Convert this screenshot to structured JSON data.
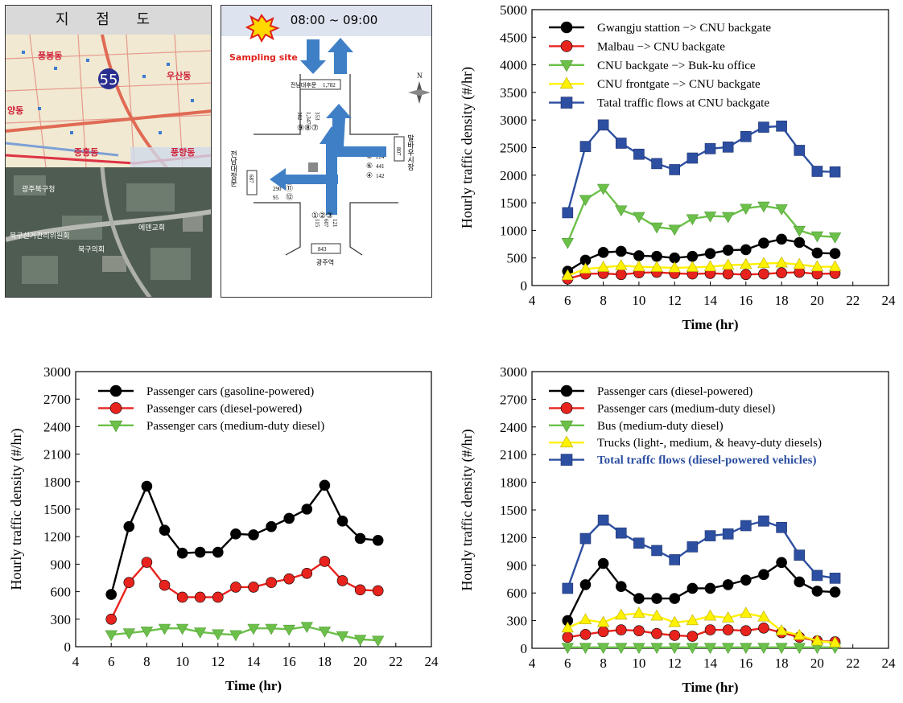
{
  "map": {
    "title": "지 점 도",
    "route_number": "55",
    "district_labels": [
      "풍봉동",
      "우산동",
      "양동",
      "중흥동",
      "풍향동"
    ],
    "satellite_labels": [
      "광주북구청",
      "북구선거관리위원회",
      "에덴교회",
      "북구의회"
    ]
  },
  "schematic": {
    "time_range": "08:00 ~ 09:00",
    "sampling_label": "Sampling site",
    "north_label": "N",
    "top_road": "전남대후문",
    "top_count": "1,782",
    "top_lane_counts": [
      "382",
      "1,347",
      "353"
    ],
    "top_lane_markers": "⑨⑧⑦",
    "right_road": "말바우시장",
    "right_count": "807",
    "right_lane_counts": [
      "224",
      "441",
      "142"
    ],
    "right_markers": [
      "⑤",
      "⑥",
      "④"
    ],
    "left_road": "전남대정문",
    "left_count": "687",
    "left_lane_counts": [
      "3",
      "290",
      "95"
    ],
    "left_markers": [
      "⑩",
      "⑪",
      "⑫"
    ],
    "bottom_road": "광주역",
    "bottom_count": "843",
    "bottom_lane_counts": [
      "115",
      "607",
      "121"
    ],
    "bottom_markers": "①②③"
  },
  "chart_data": [
    {
      "type": "line",
      "xlabel": "Time (hr)",
      "ylabel": "Hourly traffic density (#/hr)",
      "xlim": [
        4,
        24
      ],
      "ylim": [
        0,
        5000
      ],
      "xticks": [
        4,
        6,
        8,
        10,
        12,
        14,
        16,
        18,
        20,
        22,
        24
      ],
      "yticks": [
        0,
        500,
        1000,
        1500,
        2000,
        2500,
        3000,
        3500,
        4000,
        4500,
        5000
      ],
      "legend_position": "top-left",
      "x": [
        6,
        7,
        8,
        9,
        10,
        11,
        12,
        13,
        14,
        15,
        16,
        17,
        18,
        19,
        20,
        21
      ],
      "series": [
        {
          "name": "Gwangju stattion −> CNU backgate",
          "marker": "circle",
          "color": "#000000",
          "values": [
            260,
            460,
            600,
            620,
            540,
            530,
            500,
            530,
            580,
            640,
            650,
            770,
            840,
            780,
            590,
            580
          ]
        },
        {
          "name": "Malbau −> CNU backgate",
          "marker": "circle",
          "color": "#e8231d",
          "values": [
            120,
            210,
            220,
            200,
            230,
            240,
            220,
            210,
            220,
            210,
            200,
            210,
            230,
            240,
            210,
            220
          ]
        },
        {
          "name": "CNU backgate −> Buk-ku office",
          "marker": "triangle-down",
          "color": "#6cc04a",
          "values": [
            780,
            1560,
            1760,
            1370,
            1250,
            1060,
            1020,
            1210,
            1260,
            1250,
            1400,
            1440,
            1390,
            1000,
            900,
            880
          ]
        },
        {
          "name": "CNU frontgate −> CNU backgate",
          "marker": "triangle-up",
          "color": "#fff200",
          "values": [
            180,
            300,
            330,
            360,
            340,
            330,
            320,
            330,
            340,
            370,
            380,
            400,
            410,
            380,
            340,
            340
          ]
        },
        {
          "name": "Tatal traffic flows at CNU backgate",
          "marker": "square",
          "color": "#2d4fa1",
          "values": [
            1320,
            2520,
            2910,
            2580,
            2380,
            2210,
            2100,
            2310,
            2480,
            2510,
            2700,
            2870,
            2890,
            2450,
            2070,
            2060
          ]
        }
      ]
    },
    {
      "type": "line",
      "xlabel": "Time (hr)",
      "ylabel": "Hourly traffic density (#/hr)",
      "xlim": [
        4,
        24
      ],
      "ylim": [
        0,
        3000
      ],
      "xticks": [
        4,
        6,
        8,
        10,
        12,
        14,
        16,
        18,
        20,
        22,
        24
      ],
      "yticks": [
        0,
        300,
        600,
        900,
        1200,
        1500,
        1800,
        2100,
        2400,
        2700,
        3000
      ],
      "legend_position": "top-left",
      "x": [
        6,
        7,
        8,
        9,
        10,
        11,
        12,
        13,
        14,
        15,
        16,
        17,
        18,
        19,
        20,
        21
      ],
      "series": [
        {
          "name": "Passenger cars (gasoline-powered)",
          "marker": "circle",
          "color": "#000000",
          "values": [
            570,
            1310,
            1750,
            1270,
            1020,
            1030,
            1030,
            1230,
            1220,
            1310,
            1400,
            1500,
            1760,
            1370,
            1180,
            1160
          ]
        },
        {
          "name": "Passenger cars (diesel-powered)",
          "marker": "circle",
          "color": "#e8231d",
          "values": [
            300,
            700,
            920,
            670,
            540,
            540,
            540,
            650,
            650,
            700,
            740,
            800,
            930,
            720,
            620,
            610
          ]
        },
        {
          "name": "Passenger cars (medium-duty diesel)",
          "marker": "triangle-down",
          "color": "#6cc04a",
          "values": [
            130,
            150,
            170,
            200,
            200,
            160,
            140,
            130,
            200,
            200,
            190,
            220,
            170,
            120,
            80,
            70
          ]
        }
      ]
    },
    {
      "type": "line",
      "xlabel": "Time (hr)",
      "ylabel": "Hourly traffic density (#/hr)",
      "xlim": [
        4,
        24
      ],
      "ylim": [
        0,
        3000
      ],
      "xticks": [
        4,
        6,
        8,
        10,
        12,
        14,
        16,
        18,
        20,
        22,
        24
      ],
      "yticks": [
        0,
        300,
        600,
        900,
        1200,
        1500,
        1800,
        2100,
        2400,
        2700,
        3000
      ],
      "legend_position": "top-left",
      "x": [
        6,
        7,
        8,
        9,
        10,
        11,
        12,
        13,
        14,
        15,
        16,
        17,
        18,
        19,
        20,
        21
      ],
      "series": [
        {
          "name": "Passenger cars (diesel-powered)",
          "marker": "circle",
          "color": "#000000",
          "values": [
            300,
            690,
            920,
            670,
            540,
            540,
            540,
            650,
            650,
            690,
            740,
            800,
            930,
            720,
            620,
            610
          ]
        },
        {
          "name": "Passenger cars (medium-duty diesel)",
          "marker": "circle",
          "color": "#e8231d",
          "values": [
            120,
            150,
            180,
            200,
            190,
            160,
            140,
            130,
            200,
            200,
            190,
            220,
            170,
            120,
            80,
            70
          ]
        },
        {
          "name": "Bus (medium-duty diesel)",
          "marker": "triangle-down",
          "color": "#6cc04a",
          "values": [
            10,
            10,
            10,
            10,
            10,
            10,
            10,
            10,
            10,
            10,
            10,
            10,
            10,
            10,
            10,
            10
          ]
        },
        {
          "name": "Trucks (light-, medium, & heavy-duty diesels)",
          "marker": "triangle-up",
          "color": "#fff200",
          "values": [
            220,
            310,
            280,
            360,
            380,
            350,
            280,
            300,
            350,
            330,
            380,
            340,
            190,
            140,
            80,
            60
          ]
        },
        {
          "name": "Total traffc flows (diesel-powered vehicles)",
          "marker": "square",
          "color": "#2d4fa1",
          "values": [
            650,
            1190,
            1390,
            1250,
            1140,
            1060,
            960,
            1100,
            1220,
            1240,
            1330,
            1380,
            1310,
            1010,
            790,
            760
          ]
        }
      ]
    }
  ]
}
